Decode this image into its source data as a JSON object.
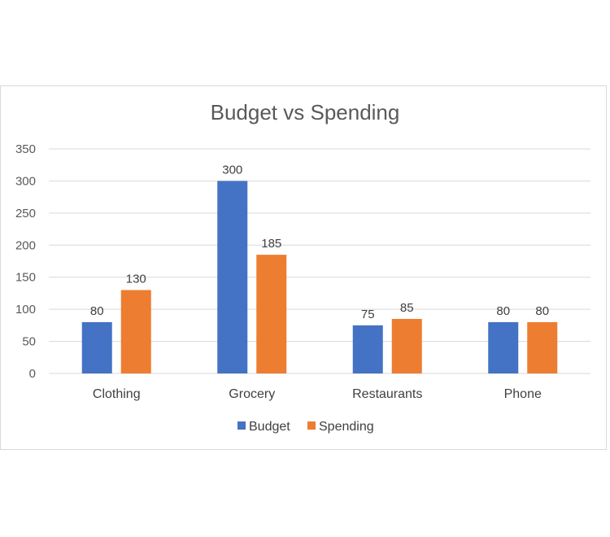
{
  "chart_data": {
    "type": "bar",
    "title": "Budget vs Spending",
    "categories": [
      "Clothing",
      "Grocery",
      "Restaurants",
      "Phone"
    ],
    "series": [
      {
        "name": "Budget",
        "values": [
          80,
          300,
          75,
          80
        ],
        "color": "#4472c4"
      },
      {
        "name": "Spending",
        "values": [
          130,
          185,
          85,
          80
        ],
        "color": "#ed7d31"
      }
    ],
    "ylim": [
      0,
      350
    ],
    "yticks": [
      0,
      50,
      100,
      150,
      200,
      250,
      300,
      350
    ],
    "grid": true,
    "legend_position": "bottom",
    "data_labels": true
  }
}
